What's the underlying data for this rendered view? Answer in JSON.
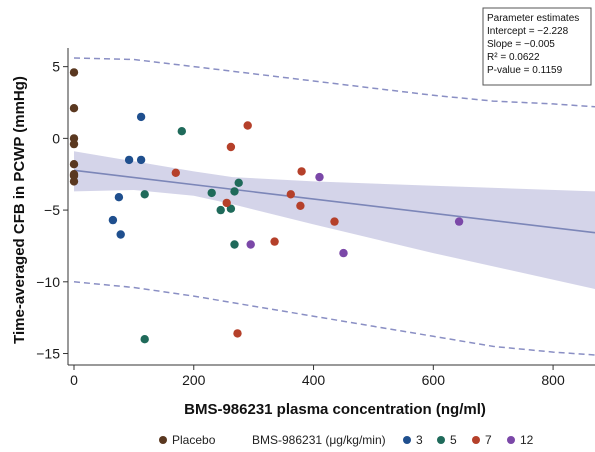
{
  "chart_data": {
    "type": "scatter",
    "xlabel": "BMS-986231 plasma concentration (ng/ml)",
    "ylabel": "Time-averaged CFB in PCWP (mmHg)",
    "xlim": [
      -10,
      870
    ],
    "ylim": [
      -15.8,
      6.3
    ],
    "x_ticks": [
      "0",
      "200",
      "400",
      "600",
      "800"
    ],
    "y_ticks": [
      "5",
      "0",
      "−5",
      "−10",
      "−15"
    ],
    "stats_box": {
      "title": "Parameter estimates",
      "intercept": "Intercept = −2.228",
      "slope": "Slope = −0.005",
      "r2": "R² = 0.0622",
      "p_value": "P-value = 0.1159"
    },
    "legend": {
      "placebo_label": "Placebo",
      "drug_label": "BMS-986231 (μg/kg/min)",
      "doses": [
        "3",
        "5",
        "7",
        "12"
      ]
    },
    "regression": {
      "intercept": -2.228,
      "slope": -0.005
    },
    "ci_band": {
      "upper": [
        [
          0,
          -0.9
        ],
        [
          100,
          -1.6
        ],
        [
          200,
          -2.3
        ],
        [
          265,
          -2.7
        ],
        [
          400,
          -3.0
        ],
        [
          600,
          -3.3
        ],
        [
          870,
          -3.7
        ]
      ],
      "lower": [
        [
          0,
          -3.7
        ],
        [
          100,
          -3.6
        ],
        [
          200,
          -4.0
        ],
        [
          265,
          -4.6
        ],
        [
          400,
          -6.0
        ],
        [
          600,
          -8.0
        ],
        [
          870,
          -10.5
        ]
      ]
    },
    "prediction_band": {
      "upper": [
        [
          0,
          5.6
        ],
        [
          100,
          5.5
        ],
        [
          200,
          5.0
        ],
        [
          300,
          4.5
        ],
        [
          400,
          4.0
        ],
        [
          500,
          3.5
        ],
        [
          600,
          3.0
        ],
        [
          700,
          2.6
        ],
        [
          800,
          2.4
        ],
        [
          870,
          2.2
        ]
      ],
      "lower": [
        [
          0,
          -10.0
        ],
        [
          100,
          -10.4
        ],
        [
          200,
          -11.0
        ],
        [
          300,
          -11.7
        ],
        [
          400,
          -12.4
        ],
        [
          500,
          -13.1
        ],
        [
          600,
          -13.8
        ],
        [
          700,
          -14.5
        ],
        [
          800,
          -14.9
        ],
        [
          870,
          -15.1
        ]
      ]
    },
    "series": [
      {
        "group": "placebo",
        "color": "#5a3820",
        "points": [
          [
            0,
            4.6
          ],
          [
            0,
            2.1
          ],
          [
            0,
            0
          ],
          [
            0,
            -0.4
          ],
          [
            0,
            -1.8
          ],
          [
            0,
            -2.6
          ],
          [
            0,
            -3.0
          ],
          [
            0,
            -2.5
          ]
        ]
      },
      {
        "group": "3",
        "color": "#1f4f8e",
        "points": [
          [
            112,
            1.5
          ],
          [
            92,
            -1.5
          ],
          [
            112,
            -1.5
          ],
          [
            75,
            -4.1
          ],
          [
            65,
            -5.7
          ],
          [
            78,
            -6.7
          ]
        ]
      },
      {
        "group": "5",
        "color": "#1f6a5a",
        "points": [
          [
            180,
            0.5
          ],
          [
            118,
            -3.9
          ],
          [
            230,
            -3.8
          ],
          [
            268,
            -3.7
          ],
          [
            275,
            -3.1
          ],
          [
            245,
            -5.0
          ],
          [
            262,
            -4.9
          ],
          [
            268,
            -7.4
          ],
          [
            118,
            -14.0
          ]
        ]
      },
      {
        "group": "7",
        "color": "#b5402a",
        "points": [
          [
            262,
            -0.6
          ],
          [
            290,
            0.9
          ],
          [
            170,
            -2.4
          ],
          [
            255,
            -4.5
          ],
          [
            362,
            -3.9
          ],
          [
            380,
            -2.3
          ],
          [
            378,
            -4.7
          ],
          [
            335,
            -7.2
          ],
          [
            435,
            -5.8
          ],
          [
            273,
            -13.6
          ]
        ]
      },
      {
        "group": "12",
        "color": "#7b48a8",
        "points": [
          [
            410,
            -2.7
          ],
          [
            295,
            -7.4
          ],
          [
            450,
            -8.0
          ],
          [
            643,
            -5.8
          ]
        ]
      }
    ]
  }
}
